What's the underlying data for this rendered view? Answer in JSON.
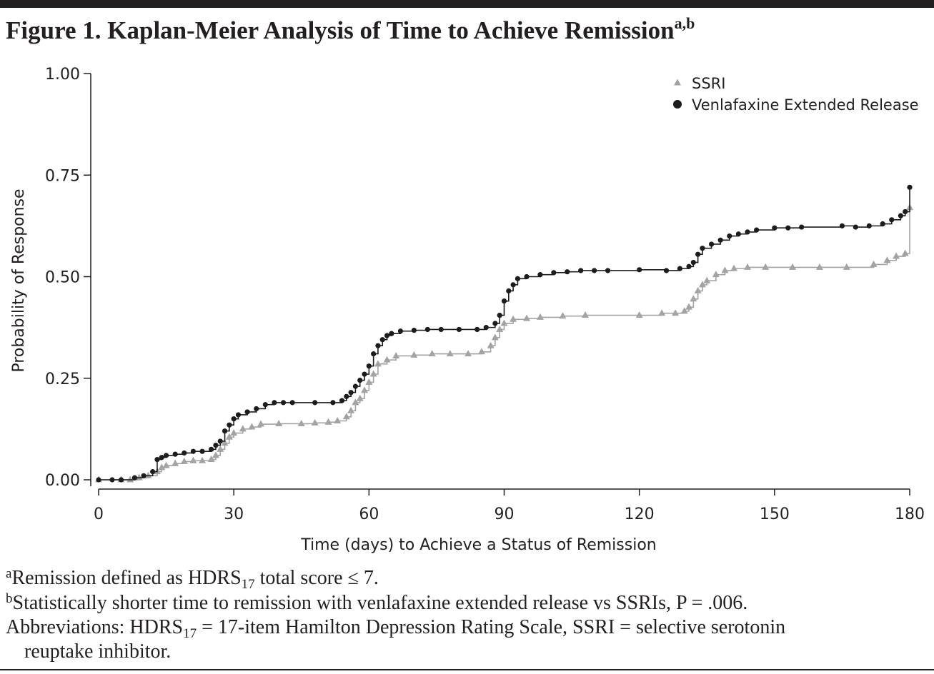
{
  "chart_data": {
    "type": "step",
    "title": "Figure 1. Kaplan-Meier Analysis of Time to Achieve Remission",
    "title_sup": "a,b",
    "x_label": "Time (days) to Achieve a Status of Remission",
    "y_label": "Probability of Response",
    "xlim": [
      0,
      180
    ],
    "xticks": [
      0,
      30,
      60,
      90,
      120,
      150,
      180
    ],
    "ylim": [
      0,
      1
    ],
    "yticks": [
      {
        "value": 0,
        "label": "0.00"
      },
      {
        "value": 0.25,
        "label": "0.25"
      },
      {
        "value": 0.5,
        "label": "0.50"
      },
      {
        "value": 0.75,
        "label": "0.75"
      },
      {
        "value": 1,
        "label": "1.00"
      }
    ],
    "legend": "upper right",
    "series": [
      {
        "name": "SSRI",
        "color": "#a3a3a3",
        "marker": "triangle",
        "x": [
          0,
          5,
          7,
          9,
          11,
          13,
          14,
          15,
          17,
          19,
          21,
          23,
          25,
          26,
          27,
          28,
          29,
          30,
          32,
          34,
          36,
          40,
          45,
          48,
          51,
          53,
          55,
          56,
          57,
          58,
          59,
          60,
          61,
          62,
          64,
          66,
          70,
          74,
          78,
          82,
          85,
          87,
          88,
          89,
          90,
          92,
          95,
          98,
          103,
          108,
          120,
          125,
          128,
          130,
          131,
          132,
          133,
          134,
          135,
          137,
          139,
          141,
          144,
          148,
          154,
          160,
          166,
          172,
          175,
          177,
          179,
          180
        ],
        "values": [
          0,
          0,
          0,
          0.005,
          0.01,
          0.02,
          0.03,
          0.035,
          0.04,
          0.045,
          0.047,
          0.047,
          0.05,
          0.06,
          0.075,
          0.09,
          0.105,
          0.115,
          0.125,
          0.13,
          0.137,
          0.138,
          0.138,
          0.14,
          0.142,
          0.145,
          0.155,
          0.17,
          0.19,
          0.2,
          0.22,
          0.24,
          0.26,
          0.285,
          0.295,
          0.305,
          0.307,
          0.31,
          0.31,
          0.31,
          0.315,
          0.33,
          0.35,
          0.37,
          0.385,
          0.395,
          0.397,
          0.4,
          0.403,
          0.405,
          0.405,
          0.41,
          0.41,
          0.415,
          0.425,
          0.445,
          0.465,
          0.48,
          0.49,
          0.505,
          0.515,
          0.52,
          0.523,
          0.523,
          0.523,
          0.523,
          0.523,
          0.53,
          0.54,
          0.55,
          0.557,
          0.67
        ]
      },
      {
        "name": "Venlafaxine Extended Release",
        "color": "#1c1c1c",
        "marker": "circle",
        "x": [
          0,
          3,
          5,
          8,
          10,
          12,
          13,
          14,
          15,
          17,
          19,
          21,
          23,
          25,
          26,
          27,
          28,
          29,
          30,
          31,
          33,
          35,
          37,
          39,
          41,
          43,
          48,
          52,
          54,
          55,
          56,
          57,
          58,
          59,
          60,
          61,
          62,
          63,
          64,
          65,
          67,
          70,
          73,
          76,
          80,
          84,
          86,
          88,
          89,
          90,
          91,
          92,
          93,
          95,
          98,
          101,
          104,
          107,
          110,
          113,
          120,
          126,
          129,
          131,
          132,
          133,
          134,
          136,
          138,
          140,
          142,
          144,
          146,
          150,
          153,
          156,
          165,
          168,
          171,
          174,
          176,
          178,
          179,
          180
        ],
        "values": [
          0,
          0,
          0,
          0.005,
          0.01,
          0.02,
          0.05,
          0.055,
          0.06,
          0.063,
          0.066,
          0.07,
          0.07,
          0.075,
          0.085,
          0.095,
          0.12,
          0.135,
          0.15,
          0.16,
          0.167,
          0.175,
          0.185,
          0.19,
          0.19,
          0.19,
          0.19,
          0.19,
          0.195,
          0.205,
          0.215,
          0.23,
          0.245,
          0.26,
          0.28,
          0.31,
          0.33,
          0.345,
          0.355,
          0.36,
          0.366,
          0.368,
          0.37,
          0.37,
          0.37,
          0.37,
          0.375,
          0.385,
          0.405,
          0.44,
          0.465,
          0.48,
          0.495,
          0.5,
          0.505,
          0.51,
          0.512,
          0.515,
          0.515,
          0.515,
          0.517,
          0.515,
          0.52,
          0.525,
          0.535,
          0.555,
          0.57,
          0.58,
          0.59,
          0.6,
          0.605,
          0.61,
          0.615,
          0.62,
          0.62,
          0.622,
          0.625,
          0.622,
          0.625,
          0.63,
          0.64,
          0.65,
          0.66,
          0.72
        ]
      }
    ]
  },
  "footnotes": [
    [
      {
        "text": "a",
        "style": "sup"
      },
      {
        "text": "Remission defined as HDRS"
      },
      {
        "text": "17",
        "style": "sub"
      },
      {
        "text": " total score ≤ 7."
      }
    ],
    [
      {
        "text": "b",
        "style": "sup"
      },
      {
        "text": "Statistically shorter time to remission with venlafaxine extended release vs SSRIs, P = .006."
      }
    ],
    [
      {
        "text": "Abbreviations: HDRS"
      },
      {
        "text": "17",
        "style": "sub"
      },
      {
        "text": " = 17-item Hamilton Depression Rating Scale, SSRI = selective serotonin"
      }
    ],
    [
      {
        "text": "reuptake inhibitor.",
        "style": "indent"
      }
    ]
  ]
}
